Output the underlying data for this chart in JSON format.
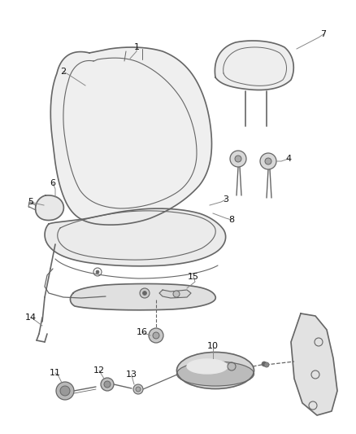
{
  "bg_color": "#ffffff",
  "line_color": "#666666",
  "fill_color": "#f0f0f0",
  "label_color": "#111111",
  "leader_color": "#888888",
  "figsize": [
    4.38,
    5.33
  ],
  "dpi": 100
}
